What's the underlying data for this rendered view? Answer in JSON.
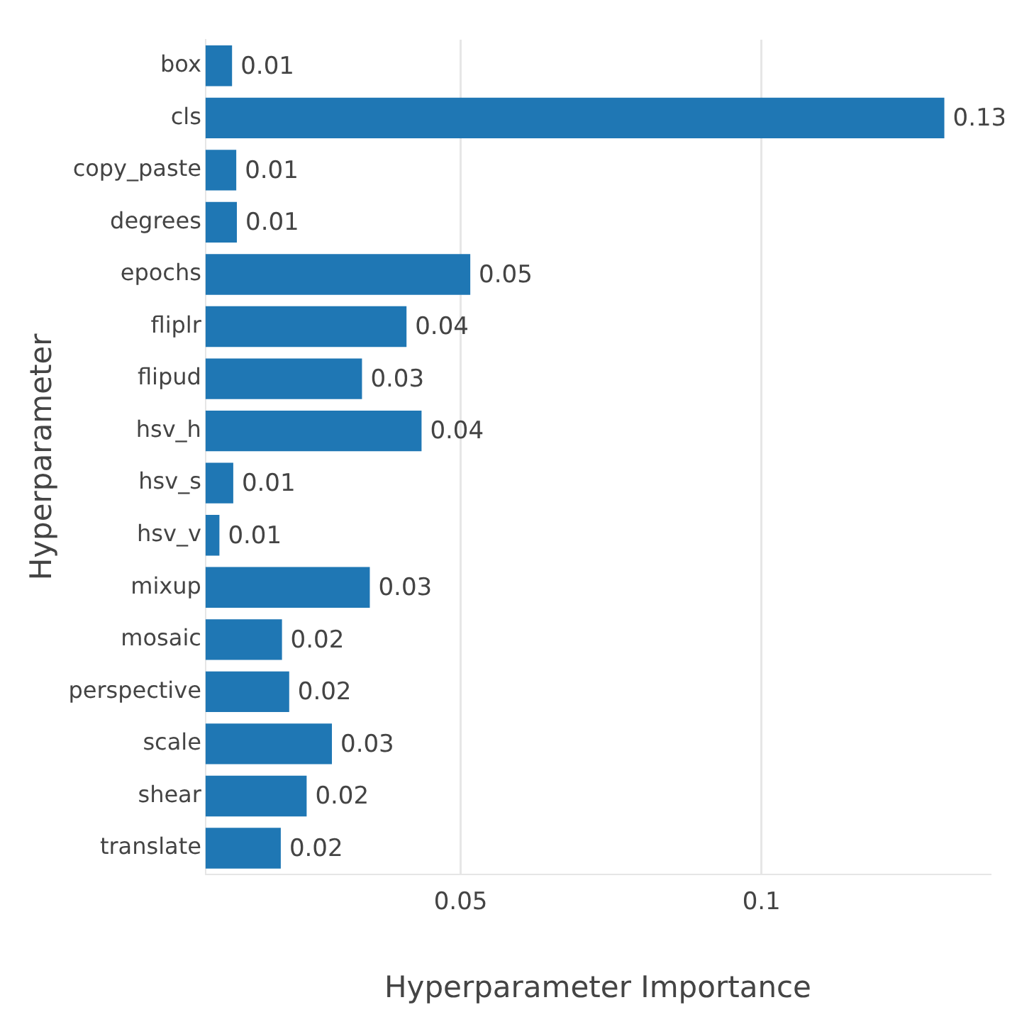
{
  "chart_data": {
    "type": "bar",
    "orientation": "horizontal",
    "xlabel": "Hyperparameter Importance",
    "ylabel": "Hyperparameter",
    "categories": [
      "box",
      "cls",
      "copy_paste",
      "degrees",
      "epochs",
      "fliplr",
      "flipud",
      "hsv_h",
      "hsv_s",
      "hsv_v",
      "mixup",
      "mosaic",
      "perspective",
      "scale",
      "shear",
      "translate"
    ],
    "values": [
      0.012,
      0.1304,
      0.0127,
      0.0128,
      0.0516,
      0.041,
      0.0336,
      0.0435,
      0.0122,
      0.0099,
      0.0349,
      0.0203,
      0.0215,
      0.0286,
      0.0244,
      0.0201
    ],
    "value_labels": [
      "0.01",
      "0.13",
      "0.01",
      "0.01",
      "0.05",
      "0.04",
      "0.03",
      "0.04",
      "0.01",
      "0.01",
      "0.03",
      "0.02",
      "0.02",
      "0.03",
      "0.02",
      "0.02"
    ],
    "color": "#1f77b4",
    "xlim": [
      0.0076,
      0.138
    ],
    "xticks": [
      0.05,
      0.1
    ],
    "grid": "x",
    "legend": false
  }
}
